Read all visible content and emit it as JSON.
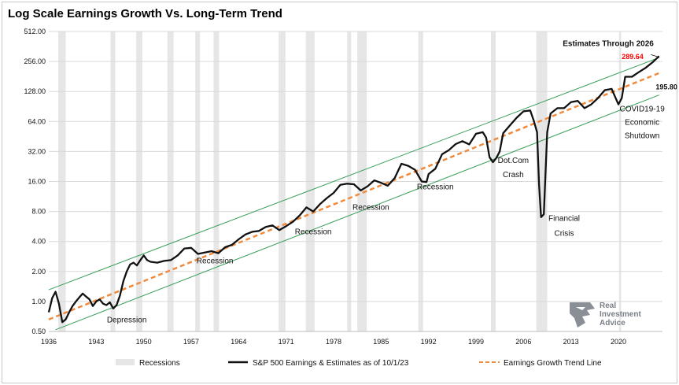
{
  "title": "Log Scale Earnings Growth Vs. Long-Term Trend",
  "colors": {
    "earnings": "#111111",
    "trend": "#f08a3c",
    "channel": "#3aa05a",
    "recession": "#e6e6e6",
    "highlight": "#ff0000"
  },
  "logo": {
    "line1": "Real",
    "line2": "Investment",
    "line3": "Advice",
    "icon": "eagle-head-icon"
  },
  "chart_data": {
    "type": "line",
    "title": "Log Scale Earnings Growth Vs. Long-Term Trend",
    "xlabel": "",
    "ylabel": "",
    "yscale": "log2",
    "ylim": [
      0.5,
      512
    ],
    "xlim": [
      1936,
      2026.5
    ],
    "x_ticks": [
      "1936",
      "1943",
      "1950",
      "1957",
      "1964",
      "1971",
      "1978",
      "1985",
      "1992",
      "1999",
      "2006",
      "2013",
      "2020"
    ],
    "y_ticks": [
      "0.50",
      "1.00",
      "2.00",
      "4.00",
      "8.00",
      "16.00",
      "32.00",
      "64.00",
      "128.00",
      "256.00",
      "512.00"
    ],
    "grid": "horizontal",
    "legend_position": "bottom",
    "legend": [
      "Recessions",
      "S&P 500 Earnings & Estimates as of 10/1/23",
      "Earnings Growth Trend Line"
    ],
    "recessions": [
      [
        1937.4,
        1938.5
      ],
      [
        1945.1,
        1945.8
      ],
      [
        1948.9,
        1949.8
      ],
      [
        1953.5,
        1954.4
      ],
      [
        1957.6,
        1958.3
      ],
      [
        1960.3,
        1961.1
      ],
      [
        1969.9,
        1970.9
      ],
      [
        1973.9,
        1975.2
      ],
      [
        1980.0,
        1980.6
      ],
      [
        1981.5,
        1982.9
      ],
      [
        1990.5,
        1991.2
      ],
      [
        2001.2,
        2001.9
      ],
      [
        2007.9,
        2009.5
      ],
      [
        2020.1,
        2020.4
      ]
    ],
    "series": [
      {
        "name": "S&P 500 Earnings & Estimates as of 10/1/23",
        "x": [
          1936.0,
          1936.5,
          1937.0,
          1937.5,
          1938.0,
          1938.5,
          1939.0,
          1939.5,
          1940.0,
          1940.5,
          1941.0,
          1941.5,
          1942.0,
          1942.5,
          1943.0,
          1943.5,
          1944.0,
          1944.5,
          1945.0,
          1945.5,
          1946.0,
          1946.5,
          1947.0,
          1947.5,
          1948.0,
          1948.5,
          1949.0,
          1949.5,
          1950.0,
          1950.5,
          1951.0,
          1952.0,
          1953.0,
          1954.0,
          1955.0,
          1956.0,
          1957.0,
          1958.0,
          1959.0,
          1960.0,
          1961.0,
          1962.0,
          1963.0,
          1964.0,
          1965.0,
          1966.0,
          1967.0,
          1968.0,
          1969.0,
          1970.0,
          1971.0,
          1972.0,
          1973.0,
          1974.0,
          1975.0,
          1976.0,
          1977.0,
          1978.0,
          1979.0,
          1980.0,
          1981.0,
          1982.0,
          1983.0,
          1984.0,
          1985.0,
          1986.0,
          1987.0,
          1988.0,
          1989.0,
          1990.0,
          1991.0,
          1991.7,
          1992.0,
          1993.0,
          1994.0,
          1995.0,
          1996.0,
          1997.0,
          1998.0,
          1999.0,
          2000.0,
          2000.5,
          2001.0,
          2001.5,
          2002.0,
          2002.5,
          2003.0,
          2004.0,
          2005.0,
          2006.0,
          2007.0,
          2007.5,
          2008.0,
          2008.3,
          2008.6,
          2009.0,
          2009.5,
          2010.0,
          2011.0,
          2012.0,
          2013.0,
          2014.0,
          2015.0,
          2016.0,
          2017.0,
          2018.0,
          2019.0,
          2020.0,
          2020.5,
          2021.0,
          2022.0,
          2023.0,
          2024.0,
          2025.0,
          2026.0
        ],
        "values": [
          0.78,
          1.08,
          1.25,
          0.95,
          0.62,
          0.66,
          0.78,
          0.9,
          1.0,
          1.1,
          1.2,
          1.12,
          1.05,
          0.9,
          1.0,
          1.05,
          0.95,
          0.92,
          0.98,
          0.85,
          0.92,
          1.15,
          1.6,
          2.0,
          2.35,
          2.45,
          2.3,
          2.6,
          2.9,
          2.6,
          2.5,
          2.45,
          2.55,
          2.6,
          2.9,
          3.4,
          3.45,
          3.0,
          3.1,
          3.2,
          3.05,
          3.5,
          3.7,
          4.2,
          4.7,
          5.0,
          5.1,
          5.6,
          5.8,
          5.2,
          5.7,
          6.3,
          7.3,
          8.8,
          8.0,
          9.5,
          10.9,
          12.3,
          14.8,
          15.2,
          15.0,
          13.0,
          14.3,
          16.4,
          15.5,
          14.5,
          17.3,
          24.1,
          23.0,
          21.0,
          16.0,
          15.8,
          19.0,
          21.5,
          30.0,
          33.0,
          38.0,
          40.6,
          37.7,
          48.2,
          50.0,
          44.0,
          28.0,
          25.0,
          27.5,
          32.0,
          48.7,
          58.5,
          69.9,
          81.0,
          82.5,
          66.0,
          50.0,
          15.0,
          7.0,
          7.5,
          50.0,
          77.0,
          87.0,
          87.0,
          100.0,
          103.0,
          87.0,
          95.0,
          110.0,
          132.0,
          136.0,
          95.0,
          110.0,
          180.0,
          180.0,
          200.0,
          221.0,
          250.0,
          289.64
        ]
      },
      {
        "name": "Earnings Growth Trend Line",
        "x": [
          1936,
          2026
        ],
        "values": [
          0.66,
          195.8
        ]
      }
    ],
    "channel_upper": {
      "x": [
        1936,
        2026
      ],
      "values": [
        1.31,
        280.0
      ]
    },
    "channel_lower": {
      "x": [
        1937,
        2026
      ],
      "values": [
        0.52,
        118.0
      ]
    },
    "annotations": [
      {
        "text": "Depression",
        "x": 1947.5,
        "y": 0.66,
        "bold": false
      },
      {
        "text": "Recession",
        "x": 1960.5,
        "y": 2.6,
        "bold": false
      },
      {
        "text": "Recession",
        "x": 1975.0,
        "y": 5.1,
        "bold": false
      },
      {
        "text": "Recession",
        "x": 1983.5,
        "y": 8.9,
        "bold": false
      },
      {
        "text": "Recession",
        "x": 1993.0,
        "y": 14.4,
        "bold": false
      },
      {
        "text": "Dot.Com",
        "x": 2004.5,
        "y": 26.5,
        "bold": false
      },
      {
        "text": "Crash",
        "x": 2004.5,
        "y": 19.0,
        "bold": false
      },
      {
        "text": "Financial",
        "x": 2012.0,
        "y": 6.9,
        "bold": false
      },
      {
        "text": "Crisis",
        "x": 2012.0,
        "y": 4.9,
        "bold": false
      },
      {
        "text": "COVID19-19",
        "x": 2023.5,
        "y": 87.0,
        "bold": false
      },
      {
        "text": "Economic",
        "x": 2023.5,
        "y": 64.0,
        "bold": false
      },
      {
        "text": "Shutdown",
        "x": 2023.5,
        "y": 47.0,
        "bold": false
      },
      {
        "text": "Estimates Through 2026",
        "x": 2018.5,
        "y": 392.0,
        "bold": true
      }
    ],
    "data_labels": [
      {
        "text": "289.64",
        "x": 2020.5,
        "y": 290.0,
        "color": "#ff0000"
      },
      {
        "text": "195.80",
        "x": 2025.5,
        "y": 145.0,
        "color": "#111111"
      }
    ]
  }
}
